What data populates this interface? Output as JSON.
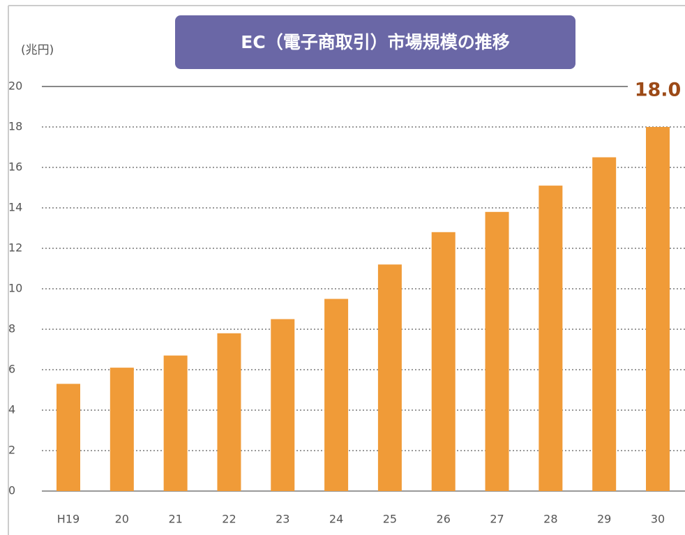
{
  "chart_data": {
    "type": "bar",
    "title": "EC（電子商取引）市場規模の推移",
    "y_label": "(兆円)",
    "categories": [
      "H19",
      "20",
      "21",
      "22",
      "23",
      "24",
      "25",
      "26",
      "27",
      "28",
      "29",
      "30"
    ],
    "values": [
      5.3,
      6.1,
      6.7,
      7.8,
      8.5,
      9.5,
      11.2,
      12.8,
      13.8,
      15.1,
      16.5,
      18.0
    ],
    "value_labels": [
      null,
      null,
      null,
      null,
      null,
      null,
      null,
      null,
      null,
      null,
      null,
      "18.0"
    ],
    "color": "#f09b38",
    "ylim": [
      0,
      20
    ],
    "yticks": [
      0,
      2,
      4,
      6,
      8,
      10,
      12,
      14,
      16,
      18,
      20
    ],
    "grid": true
  }
}
